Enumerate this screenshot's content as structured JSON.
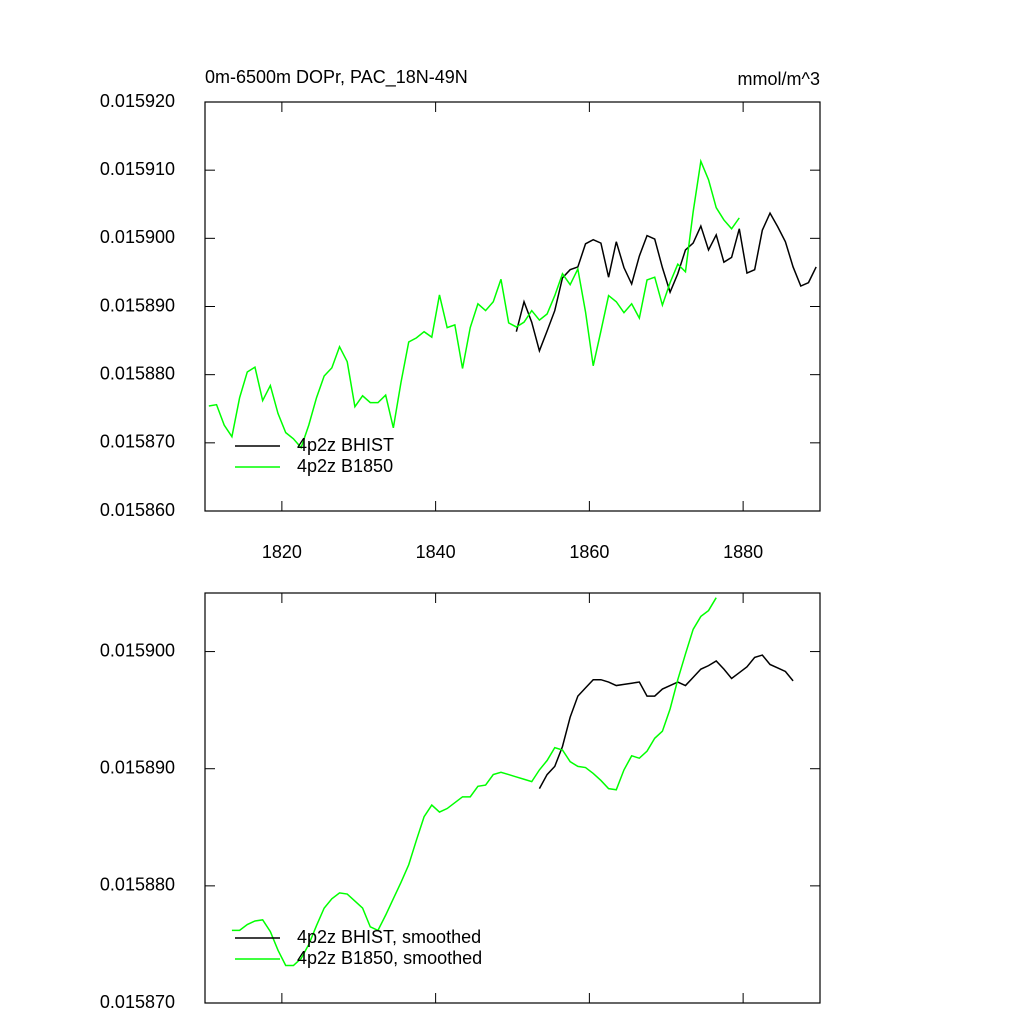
{
  "chart_data": [
    {
      "type": "line",
      "title": "0m-6500m DOPr, PAC_18N-49N",
      "units": "mmol/m^3",
      "xlim": [
        1810,
        1890
      ],
      "xticks": [
        1820,
        1840,
        1860,
        1880
      ],
      "ylim": [
        0.01586,
        0.01592
      ],
      "yticks": [
        {
          "value": 0.01586,
          "label": "0.015860"
        },
        {
          "value": 0.01587,
          "label": "0.015870"
        },
        {
          "value": 0.01588,
          "label": "0.015880"
        },
        {
          "value": 0.01589,
          "label": "0.015890"
        },
        {
          "value": 0.0159,
          "label": "0.015900"
        },
        {
          "value": 0.01591,
          "label": "0.015910"
        },
        {
          "value": 0.01592,
          "label": "0.015920"
        }
      ],
      "legend": "lower left",
      "series": [
        {
          "name": "4p2z BHIST",
          "color": "#000000",
          "x": [
            1850.5,
            1851.5,
            1852.5,
            1853.5,
            1854.5,
            1855.5,
            1856.5,
            1857.5,
            1858.5,
            1859.5,
            1860.5,
            1861.5,
            1862.5,
            1863.5,
            1864.5,
            1865.5,
            1866.5,
            1867.5,
            1868.5,
            1869.5,
            1870.5,
            1871.5,
            1872.5,
            1873.5,
            1874.5,
            1875.5,
            1876.5,
            1877.5,
            1878.5,
            1879.5,
            1880.5,
            1881.5,
            1882.5,
            1883.5,
            1884.5,
            1885.5,
            1886.5,
            1887.5,
            1888.5,
            1889.5
          ],
          "values": [
            0.0158863,
            0.0158907,
            0.0158877,
            0.0158835,
            0.0158864,
            0.0158894,
            0.0158942,
            0.0158954,
            0.0158958,
            0.0158992,
            0.0158998,
            0.0158993,
            0.0158943,
            0.0158995,
            0.0158957,
            0.0158933,
            0.0158974,
            0.0159004,
            0.0158999,
            0.0158957,
            0.0158921,
            0.0158948,
            0.0158983,
            0.0158993,
            0.0159018,
            0.0158983,
            0.0159005,
            0.0158965,
            0.0158972,
            0.0159014,
            0.0158949,
            0.0158954,
            0.0159012,
            0.0159037,
            0.0159017,
            0.0158995,
            0.0158958,
            0.015893,
            0.0158935,
            0.0158958
          ]
        },
        {
          "name": "4p2z B1850",
          "color": "#00ff00",
          "x": [
            1810.5,
            1811.5,
            1812.5,
            1813.5,
            1814.5,
            1815.5,
            1816.5,
            1817.5,
            1818.5,
            1819.5,
            1820.5,
            1821.5,
            1822.5,
            1823.5,
            1824.5,
            1825.5,
            1826.5,
            1827.5,
            1828.5,
            1829.5,
            1830.5,
            1831.5,
            1832.5,
            1833.5,
            1834.5,
            1835.5,
            1836.5,
            1837.5,
            1838.5,
            1839.5,
            1840.5,
            1841.5,
            1842.5,
            1843.5,
            1844.5,
            1845.5,
            1846.5,
            1847.5,
            1848.5,
            1849.5,
            1850.5,
            1851.5,
            1852.5,
            1853.5,
            1854.5,
            1855.5,
            1856.5,
            1857.5,
            1858.5,
            1859.5,
            1860.5,
            1861.5,
            1862.5,
            1863.5,
            1864.5,
            1865.5,
            1866.5,
            1867.5,
            1868.5,
            1869.5,
            1870.5,
            1871.5,
            1872.5,
            1873.5,
            1874.5,
            1875.5,
            1876.5,
            1877.5,
            1878.5,
            1879.5
          ],
          "values": [
            0.0158754,
            0.0158756,
            0.0158726,
            0.0158709,
            0.0158766,
            0.0158804,
            0.0158811,
            0.0158762,
            0.0158784,
            0.0158743,
            0.0158715,
            0.0158706,
            0.0158693,
            0.0158726,
            0.0158766,
            0.0158798,
            0.015881,
            0.0158841,
            0.0158819,
            0.0158753,
            0.0158769,
            0.0158759,
            0.0158759,
            0.015877,
            0.0158722,
            0.0158789,
            0.0158848,
            0.0158854,
            0.0158863,
            0.0158855,
            0.0158917,
            0.0158869,
            0.0158873,
            0.0158809,
            0.0158869,
            0.0158904,
            0.0158894,
            0.0158907,
            0.015894,
            0.0158876,
            0.015887,
            0.0158877,
            0.0158894,
            0.015888,
            0.0158889,
            0.0158916,
            0.0158948,
            0.0158932,
            0.0158955,
            0.0158892,
            0.0158813,
            0.0158864,
            0.0158916,
            0.0158907,
            0.0158891,
            0.0158904,
            0.0158883,
            0.0158939,
            0.0158943,
            0.0158902,
            0.0158935,
            0.0158962,
            0.0158951,
            0.0159039,
            0.0159113,
            0.0159086,
            0.0159045,
            0.0159027,
            0.0159014,
            0.015903
          ]
        }
      ]
    },
    {
      "type": "line",
      "xlim": [
        1810,
        1890
      ],
      "xticks": [
        1820,
        1840,
        1860,
        1880
      ],
      "xtick_labels": false,
      "ylim": [
        0.01587,
        0.015905
      ],
      "yticks": [
        {
          "value": 0.01587,
          "label": "0.015870"
        },
        {
          "value": 0.01588,
          "label": "0.015880"
        },
        {
          "value": 0.01589,
          "label": "0.015890"
        },
        {
          "value": 0.0159,
          "label": "0.015900"
        }
      ],
      "legend": "lower left",
      "series": [
        {
          "name": "4p2z BHIST, smoothed",
          "color": "#000000",
          "x": [
            1853.5,
            1854.5,
            1855.5,
            1856.5,
            1857.5,
            1858.5,
            1859.5,
            1860.5,
            1861.5,
            1862.5,
            1863.5,
            1864.5,
            1865.5,
            1866.5,
            1867.5,
            1868.5,
            1869.5,
            1870.5,
            1871.5,
            1872.5,
            1873.5,
            1874.5,
            1875.5,
            1876.5,
            1877.5,
            1878.5,
            1879.5,
            1880.5,
            1881.5,
            1882.5,
            1883.5,
            1884.5,
            1885.5,
            1886.5
          ],
          "values": [
            0.0158883,
            0.0158895,
            0.0158902,
            0.0158919,
            0.0158944,
            0.0158962,
            0.0158969,
            0.0158976,
            0.0158976,
            0.0158974,
            0.0158971,
            0.0158972,
            0.0158973,
            0.0158974,
            0.0158962,
            0.0158962,
            0.0158968,
            0.0158971,
            0.0158974,
            0.0158971,
            0.0158978,
            0.0158985,
            0.0158988,
            0.0158992,
            0.0158985,
            0.0158977,
            0.0158982,
            0.0158987,
            0.0158995,
            0.0158997,
            0.0158989,
            0.0158986,
            0.0158983,
            0.0158975
          ]
        },
        {
          "name": "4p2z B1850, smoothed",
          "color": "#00ff00",
          "x": [
            1813.5,
            1814.5,
            1815.5,
            1816.5,
            1817.5,
            1818.5,
            1819.5,
            1820.5,
            1821.5,
            1822.5,
            1823.5,
            1824.5,
            1825.5,
            1826.5,
            1827.5,
            1828.5,
            1829.5,
            1830.5,
            1831.5,
            1832.5,
            1833.5,
            1834.5,
            1835.5,
            1836.5,
            1837.5,
            1838.5,
            1839.5,
            1840.5,
            1841.5,
            1842.5,
            1843.5,
            1844.5,
            1845.5,
            1846.5,
            1847.5,
            1848.5,
            1849.5,
            1850.5,
            1851.5,
            1852.5,
            1853.5,
            1854.5,
            1855.5,
            1856.5,
            1857.5,
            1858.5,
            1859.5,
            1860.5,
            1861.5,
            1862.5,
            1863.5,
            1864.5,
            1865.5,
            1866.5,
            1867.5,
            1868.5,
            1869.5,
            1870.5,
            1871.5,
            1872.5,
            1873.5,
            1874.5,
            1875.5,
            1876.5
          ],
          "values": [
            0.0158762,
            0.0158762,
            0.0158767,
            0.015877,
            0.0158771,
            0.0158761,
            0.0158745,
            0.0158732,
            0.0158732,
            0.0158738,
            0.015875,
            0.0158766,
            0.0158781,
            0.0158789,
            0.0158794,
            0.0158793,
            0.0158787,
            0.0158781,
            0.0158765,
            0.0158762,
            0.0158775,
            0.0158789,
            0.0158803,
            0.0158818,
            0.0158839,
            0.0158859,
            0.0158869,
            0.0158863,
            0.0158866,
            0.0158871,
            0.0158876,
            0.0158876,
            0.0158885,
            0.0158886,
            0.0158895,
            0.0158897,
            0.0158895,
            0.0158893,
            0.0158891,
            0.0158889,
            0.0158899,
            0.0158907,
            0.0158918,
            0.0158916,
            0.0158906,
            0.0158902,
            0.0158901,
            0.0158896,
            0.015889,
            0.0158883,
            0.0158882,
            0.0158899,
            0.0158911,
            0.0158909,
            0.0158915,
            0.0158926,
            0.0158932,
            0.0158951,
            0.0158976,
            0.0158998,
            0.0159019,
            0.015903,
            0.0159035,
            0.0159046
          ]
        }
      ]
    }
  ]
}
